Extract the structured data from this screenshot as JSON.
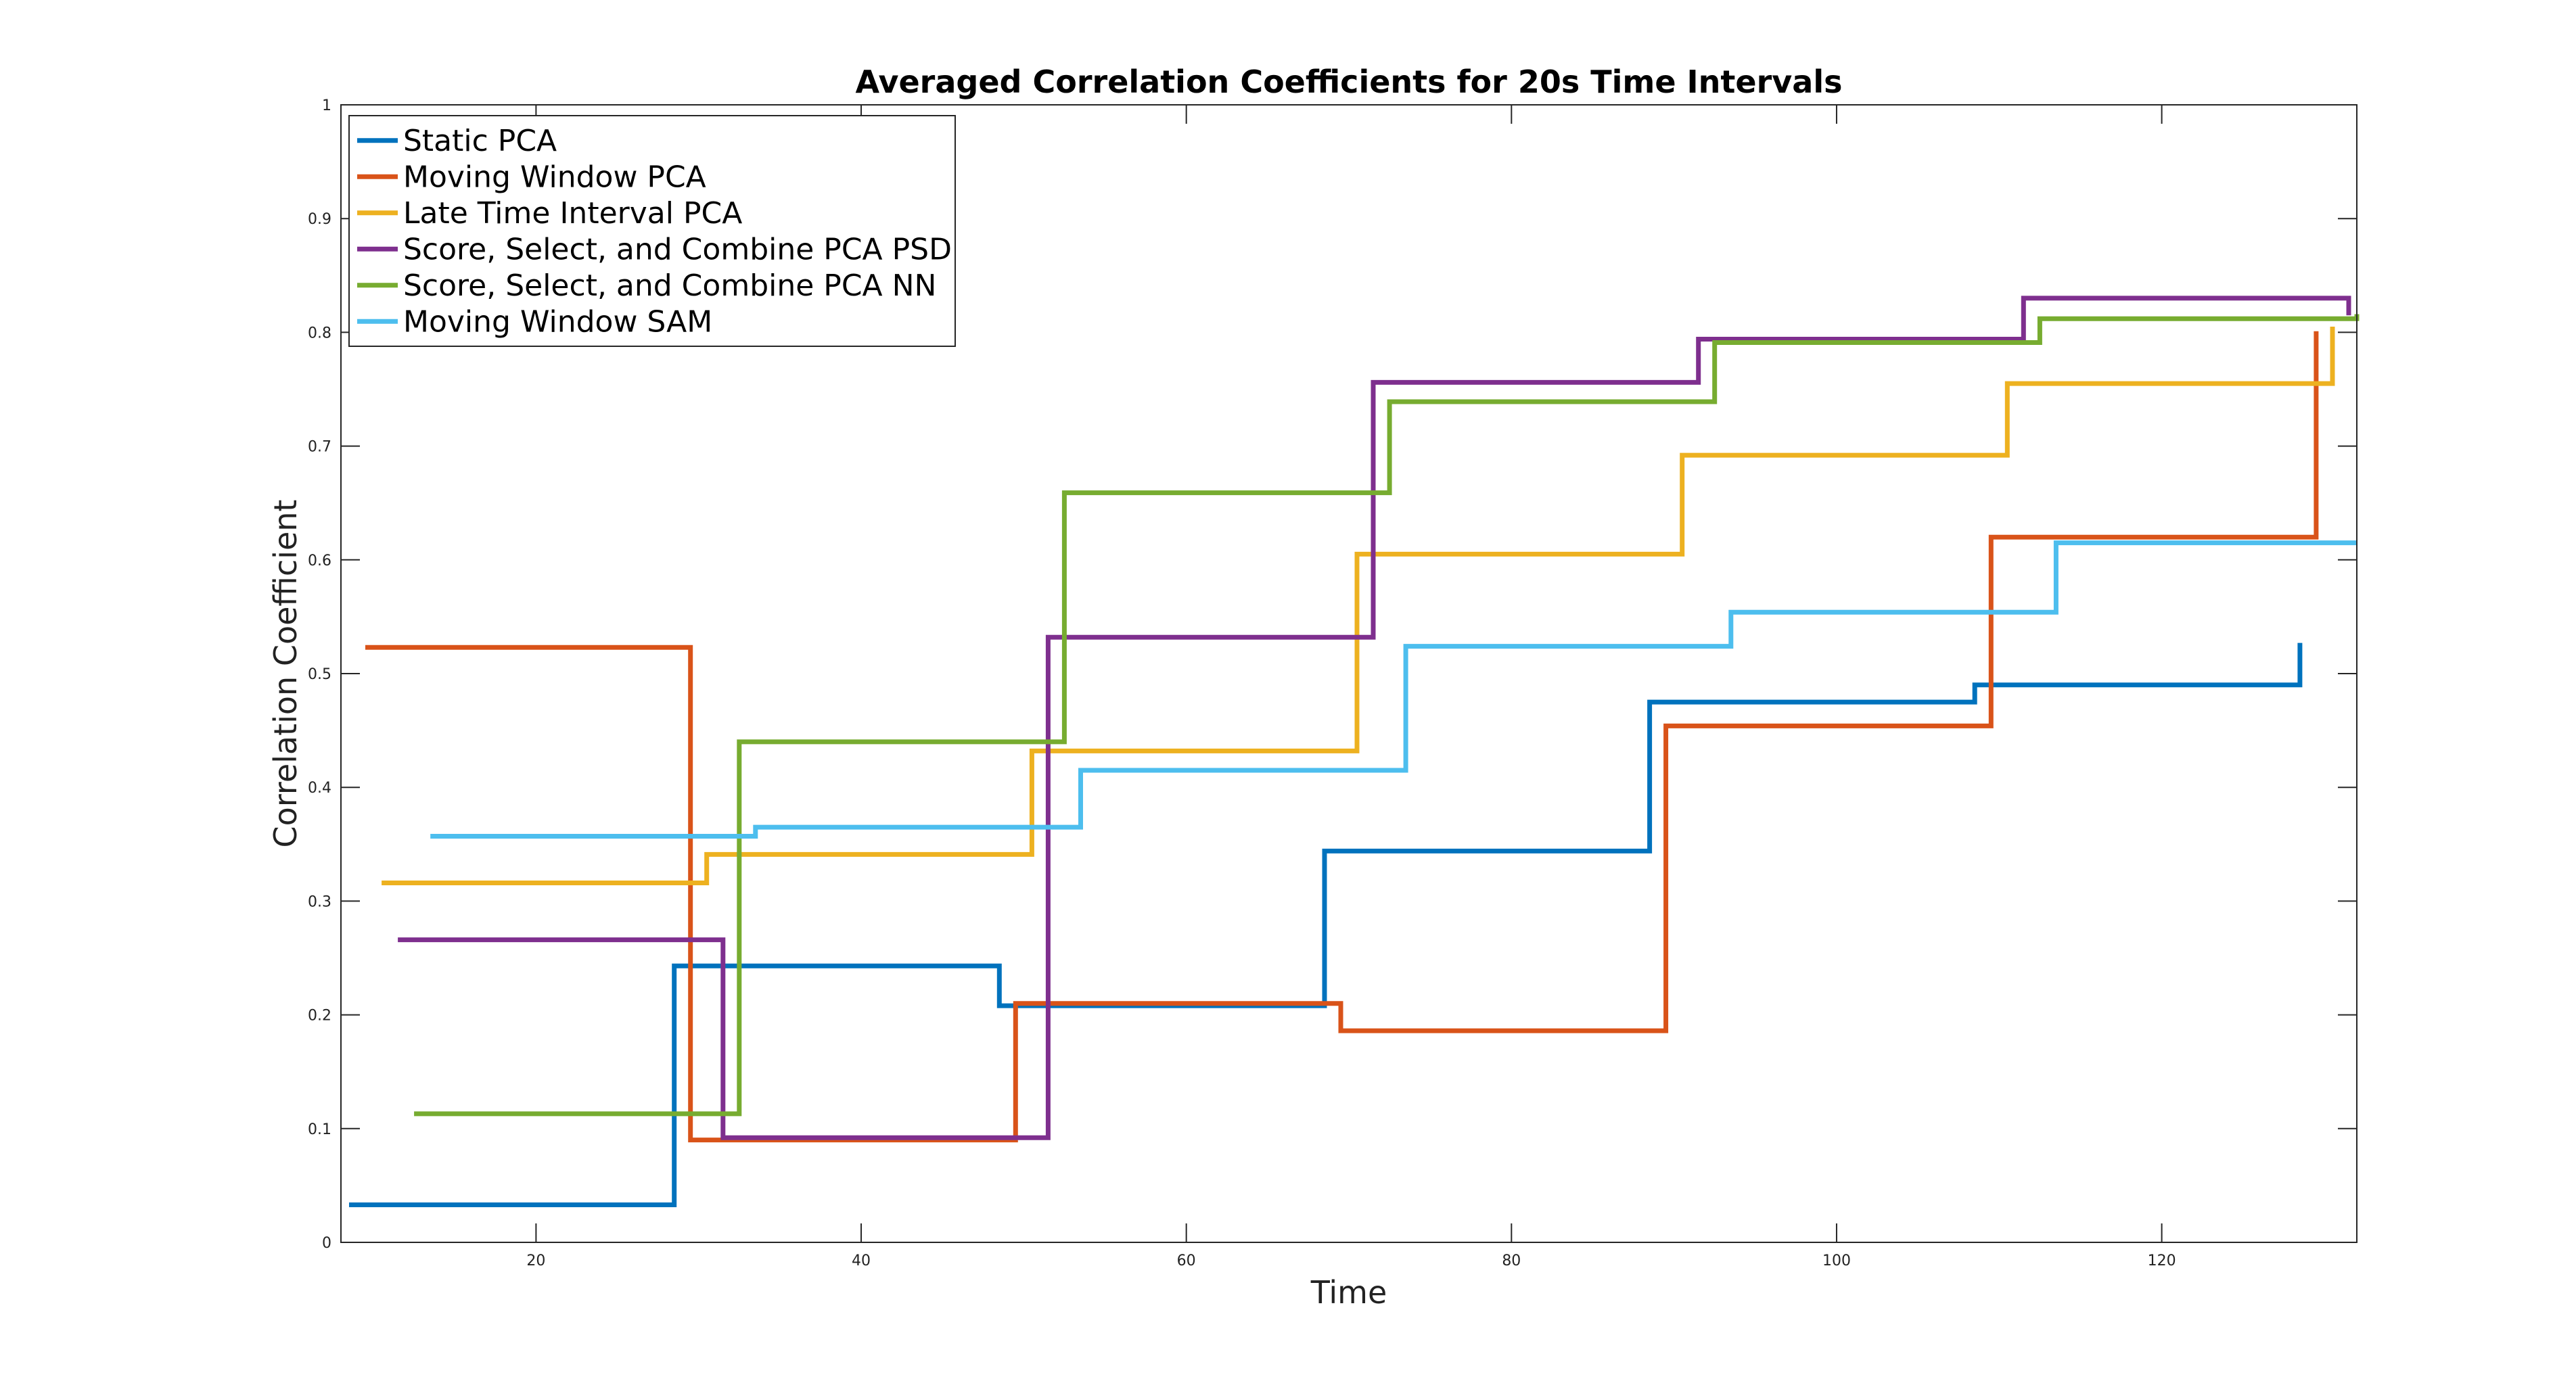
{
  "chart_data": {
    "type": "line",
    "step": "post",
    "title": "Averaged Correlation Coefficients for 20s Time Intervals",
    "xlabel": "Time",
    "ylabel": "Correlation Coefficient",
    "xlim": [
      8,
      132
    ],
    "ylim": [
      0,
      1
    ],
    "xticks": [
      20,
      40,
      60,
      80,
      100,
      120
    ],
    "yticks": [
      0,
      0.1,
      0.2,
      0.3,
      0.4,
      0.5,
      0.6,
      0.7,
      0.8,
      0.9,
      1
    ],
    "xtick_labels": [
      "20",
      "40",
      "60",
      "80",
      "100",
      "120"
    ],
    "ytick_labels": [
      "0",
      "0.1",
      "0.2",
      "0.3",
      "0.4",
      "0.5",
      "0.6",
      "0.7",
      "0.8",
      "0.9",
      "1"
    ],
    "grid": false,
    "legend_position": "top-left",
    "series": [
      {
        "name": "Static PCA",
        "color": "#0072BD",
        "points": [
          [
            8.5,
            0.033
          ],
          [
            28.5,
            0.033
          ],
          [
            28.5,
            0.243
          ],
          [
            48.5,
            0.243
          ],
          [
            48.5,
            0.208
          ],
          [
            68.5,
            0.208
          ],
          [
            68.5,
            0.344
          ],
          [
            88.5,
            0.344
          ],
          [
            88.5,
            0.475
          ],
          [
            108.5,
            0.475
          ],
          [
            108.5,
            0.49
          ],
          [
            128.5,
            0.49
          ],
          [
            128.5,
            0.527
          ]
        ]
      },
      {
        "name": "Moving Window PCA",
        "color": "#D95319",
        "points": [
          [
            9.5,
            0.523
          ],
          [
            29.5,
            0.523
          ],
          [
            29.5,
            0.09
          ],
          [
            49.5,
            0.09
          ],
          [
            49.5,
            0.21
          ],
          [
            69.5,
            0.21
          ],
          [
            69.5,
            0.186
          ],
          [
            89.5,
            0.186
          ],
          [
            89.5,
            0.454
          ],
          [
            109.5,
            0.454
          ],
          [
            109.5,
            0.62
          ],
          [
            129.5,
            0.62
          ],
          [
            129.5,
            0.801
          ]
        ]
      },
      {
        "name": "Late Time Interval PCA",
        "color": "#EDB120",
        "points": [
          [
            10.5,
            0.316
          ],
          [
            30.5,
            0.316
          ],
          [
            30.5,
            0.341
          ],
          [
            50.5,
            0.341
          ],
          [
            50.5,
            0.432
          ],
          [
            70.5,
            0.432
          ],
          [
            70.5,
            0.605
          ],
          [
            90.5,
            0.605
          ],
          [
            90.5,
            0.692
          ],
          [
            110.5,
            0.692
          ],
          [
            110.5,
            0.755
          ],
          [
            130.5,
            0.755
          ],
          [
            130.5,
            0.805
          ]
        ]
      },
      {
        "name": "Score, Select, and Combine PCA PSD",
        "color": "#7E2F8E",
        "points": [
          [
            11.5,
            0.266
          ],
          [
            31.5,
            0.266
          ],
          [
            31.5,
            0.092
          ],
          [
            51.5,
            0.092
          ],
          [
            51.5,
            0.532
          ],
          [
            71.5,
            0.532
          ],
          [
            71.5,
            0.756
          ],
          [
            91.5,
            0.756
          ],
          [
            91.5,
            0.794
          ],
          [
            111.5,
            0.794
          ],
          [
            111.5,
            0.83
          ],
          [
            131.5,
            0.83
          ],
          [
            131.5,
            0.815
          ]
        ]
      },
      {
        "name": "Score, Select, and Combine PCA NN",
        "color": "#77AC30",
        "points": [
          [
            12.5,
            0.113
          ],
          [
            32.5,
            0.113
          ],
          [
            32.5,
            0.44
          ],
          [
            52.5,
            0.44
          ],
          [
            52.5,
            0.659
          ],
          [
            72.5,
            0.659
          ],
          [
            72.5,
            0.739
          ],
          [
            92.5,
            0.739
          ],
          [
            92.5,
            0.791
          ],
          [
            112.5,
            0.791
          ],
          [
            112.5,
            0.812
          ],
          [
            132.0,
            0.812
          ],
          [
            132.0,
            0.816
          ]
        ]
      },
      {
        "name": "Moving Window SAM",
        "color": "#4DBEEE",
        "points": [
          [
            13.5,
            0.357
          ],
          [
            33.5,
            0.357
          ],
          [
            33.5,
            0.365
          ],
          [
            53.5,
            0.365
          ],
          [
            53.5,
            0.415
          ],
          [
            73.5,
            0.415
          ],
          [
            73.5,
            0.524
          ],
          [
            93.5,
            0.524
          ],
          [
            93.5,
            0.554
          ],
          [
            113.5,
            0.554
          ],
          [
            113.5,
            0.615
          ],
          [
            132.0,
            0.615
          ]
        ]
      }
    ]
  }
}
